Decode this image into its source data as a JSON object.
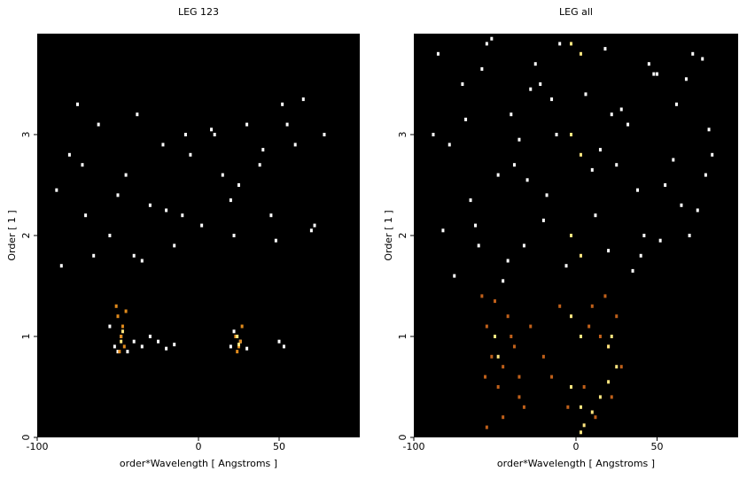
{
  "chart_data": [
    {
      "type": "scatter",
      "title": "LEG 123",
      "xlabel": "order*Wavelength [ Angstroms ]",
      "ylabel": "Order [ 1 ]",
      "background": "#000000",
      "xlim": [
        -100,
        100
      ],
      "ylim": [
        0,
        4
      ],
      "xticks": [
        -100,
        0,
        50
      ],
      "yticks": [
        0,
        1,
        2,
        3
      ],
      "series": [
        {
          "color": "#ffffff",
          "x": [
            -88,
            -80,
            -75,
            -70,
            -62,
            -55,
            -45,
            -38,
            -30,
            -22,
            -15,
            -8,
            2,
            8,
            15,
            22,
            30,
            38,
            45,
            52,
            60,
            65,
            70,
            78,
            -85,
            -65,
            -50,
            -35,
            -20,
            -5,
            10,
            25,
            40,
            55,
            72,
            -72,
            -40,
            -10,
            20,
            48
          ],
          "y": [
            2.45,
            2.8,
            3.3,
            2.2,
            3.1,
            2.0,
            2.6,
            3.2,
            2.3,
            2.9,
            1.9,
            3.0,
            2.1,
            3.05,
            2.6,
            2.0,
            3.1,
            2.7,
            2.2,
            3.3,
            2.9,
            3.35,
            2.05,
            3.0,
            1.7,
            1.8,
            2.4,
            1.75,
            2.25,
            2.8,
            3.0,
            2.5,
            2.85,
            3.1,
            2.1,
            2.7,
            1.8,
            2.2,
            2.35,
            1.95
          ]
        },
        {
          "color": "#ffffff",
          "x": [
            -52,
            -48,
            -44,
            -40,
            -35,
            -30,
            -25,
            -20,
            -15,
            20,
            22,
            26,
            30,
            50,
            53,
            -55,
            -50
          ],
          "y": [
            0.9,
            1.0,
            0.85,
            0.95,
            0.9,
            1.0,
            0.95,
            0.88,
            0.92,
            0.9,
            1.05,
            0.95,
            0.88,
            0.95,
            0.9,
            1.1,
            0.85
          ]
        },
        {
          "color": "#e08a1c",
          "x": [
            -50,
            -48,
            -46,
            -49,
            -47,
            23,
            25,
            27,
            24,
            26,
            -51,
            -45
          ],
          "y": [
            1.2,
            1.0,
            0.9,
            0.85,
            1.1,
            1.0,
            0.9,
            1.1,
            0.85,
            0.95,
            1.3,
            1.25
          ]
        },
        {
          "color": "#ffe680",
          "x": [
            -48,
            -47,
            25,
            24
          ],
          "y": [
            0.95,
            1.05,
            0.92,
            1.0
          ]
        }
      ]
    },
    {
      "type": "scatter",
      "title": "LEG all",
      "xlabel": "order*Wavelength [ Angstroms ]",
      "ylabel": "Order [ 1 ]",
      "background": "#000000",
      "xlim": [
        -100,
        100
      ],
      "ylim": [
        0,
        4
      ],
      "xticks": [
        -100,
        0,
        50
      ],
      "yticks": [
        0,
        1,
        2,
        3
      ],
      "series": [
        {
          "color": "#ffffff",
          "x": [
            -85,
            -78,
            -70,
            -62,
            -55,
            -48,
            -40,
            -32,
            -25,
            -18,
            -12,
            -6,
            6,
            12,
            18,
            25,
            32,
            40,
            48,
            55,
            62,
            70,
            78,
            84,
            -88,
            -75,
            -65,
            -58,
            -45,
            -35,
            -28,
            -20,
            -10,
            10,
            20,
            28,
            38,
            45,
            52,
            60,
            68,
            75,
            82,
            -82,
            -68,
            -52,
            -42,
            -30,
            -15,
            15,
            35,
            50,
            65,
            80,
            -60,
            -38,
            -22,
            22,
            42,
            72
          ],
          "y": [
            3.8,
            2.9,
            3.5,
            2.1,
            3.9,
            2.6,
            3.2,
            1.9,
            3.7,
            2.4,
            3.0,
            1.7,
            3.4,
            2.2,
            3.85,
            2.7,
            3.1,
            1.8,
            3.6,
            2.5,
            3.3,
            2.0,
            3.75,
            2.8,
            3.0,
            1.6,
            2.35,
            3.65,
            1.55,
            2.95,
            3.45,
            2.15,
            3.9,
            2.65,
            1.85,
            3.25,
            2.45,
            3.7,
            1.95,
            2.75,
            3.55,
            2.25,
            3.05,
            2.05,
            3.15,
            3.95,
            1.75,
            2.55,
            3.35,
            2.85,
            1.65,
            3.6,
            2.3,
            2.6,
            1.9,
            2.7,
            3.5,
            3.2,
            2.0,
            3.8
          ]
        },
        {
          "color": "#c0601a",
          "x": [
            -58,
            -55,
            -52,
            -48,
            -45,
            -42,
            -38,
            -35,
            -32,
            -55,
            -50,
            -45,
            -40,
            -35,
            10,
            15,
            20,
            25,
            28,
            5,
            12,
            18,
            -28,
            -20,
            -15,
            -10,
            -5,
            8,
            22,
            -56
          ],
          "y": [
            1.4,
            1.1,
            0.8,
            0.5,
            0.2,
            1.2,
            0.9,
            0.6,
            0.3,
            0.1,
            1.35,
            0.7,
            1.0,
            0.4,
            1.3,
            1.0,
            0.9,
            1.2,
            0.7,
            0.5,
            0.2,
            1.4,
            1.1,
            0.8,
            0.6,
            1.3,
            0.3,
            1.1,
            0.4,
            0.6
          ]
        },
        {
          "color": "#ffe680",
          "x": [
            -3,
            -3,
            -3,
            -3,
            -3,
            3,
            3,
            3,
            3,
            3,
            3,
            5,
            10,
            15,
            20,
            25,
            -50,
            -48,
            20,
            22
          ],
          "y": [
            3.9,
            3.0,
            2.0,
            1.2,
            0.5,
            3.8,
            2.8,
            1.8,
            1.0,
            0.3,
            0.05,
            0.12,
            0.25,
            0.4,
            0.55,
            0.7,
            1.0,
            0.8,
            0.9,
            1.0
          ]
        }
      ]
    }
  ]
}
